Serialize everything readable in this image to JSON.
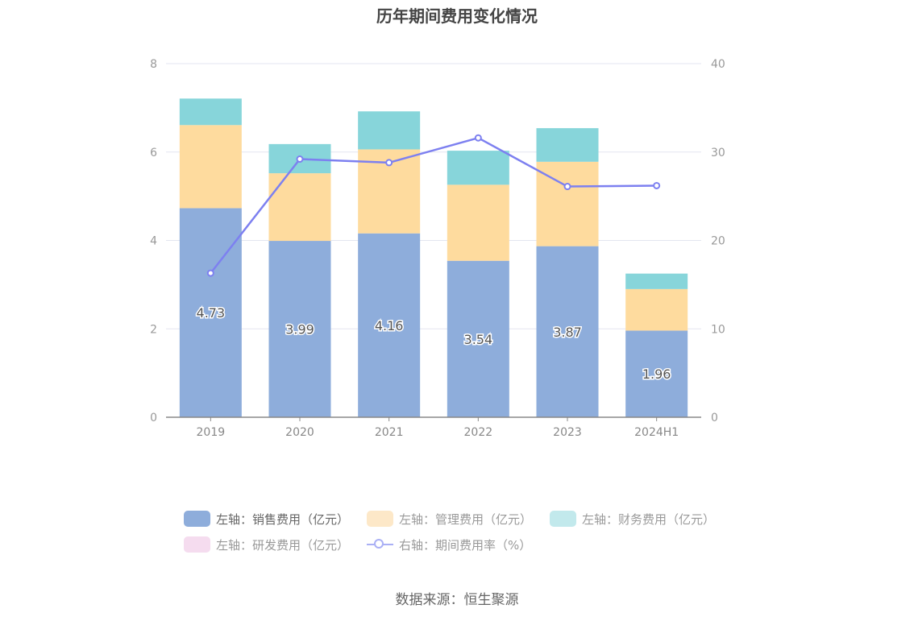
{
  "chart_data": {
    "type": "bar",
    "stacked": true,
    "title": "历年期间费用变化情况",
    "categories": [
      "2019",
      "2020",
      "2021",
      "2022",
      "2023",
      "2024H1"
    ],
    "series": [
      {
        "name": "左轴：销售费用（亿元）",
        "axis": "left",
        "type": "bar",
        "color": "#8eaddb",
        "values": [
          4.73,
          3.99,
          4.16,
          3.54,
          3.87,
          1.96
        ],
        "labels": [
          "4.73",
          "3.99",
          "4.16",
          "3.54",
          "3.87",
          "1.96"
        ]
      },
      {
        "name": "左轴：管理费用（亿元）",
        "axis": "left",
        "type": "bar",
        "color": "#fedb9e",
        "values": [
          1.88,
          1.53,
          1.9,
          1.72,
          1.91,
          0.94
        ]
      },
      {
        "name": "左轴：财务费用（亿元）",
        "axis": "left",
        "type": "bar",
        "color": "#87d5da",
        "values": [
          0.6,
          0.66,
          0.86,
          0.77,
          0.76,
          0.35
        ]
      },
      {
        "name": "左轴：研发费用（亿元）",
        "axis": "left",
        "type": "bar",
        "color": "#f5dcef",
        "values": [
          0,
          0,
          0,
          0,
          0,
          0
        ]
      },
      {
        "name": "右轴：期间费用率（%）",
        "axis": "right",
        "type": "line",
        "color": "#7d80f0",
        "values": [
          16.3,
          29.2,
          28.8,
          31.6,
          26.1,
          26.2
        ]
      }
    ],
    "yleft": {
      "lim": [
        0,
        8
      ],
      "ticks": [
        "0",
        "2",
        "4",
        "6",
        "8"
      ]
    },
    "yright": {
      "lim": [
        0,
        40
      ],
      "ticks": [
        "0",
        "10",
        "20",
        "30",
        "40"
      ]
    },
    "grid": true,
    "legend_position": "bottom"
  },
  "legend": {
    "row1": [
      "左轴：销售费用（亿元）",
      "左轴：管理费用（亿元）",
      "左轴：财务费用（亿元）"
    ],
    "row2": [
      "左轴：研发费用（亿元）",
      "右轴：期间费用率（%）"
    ]
  },
  "source": "数据来源：恒生聚源"
}
